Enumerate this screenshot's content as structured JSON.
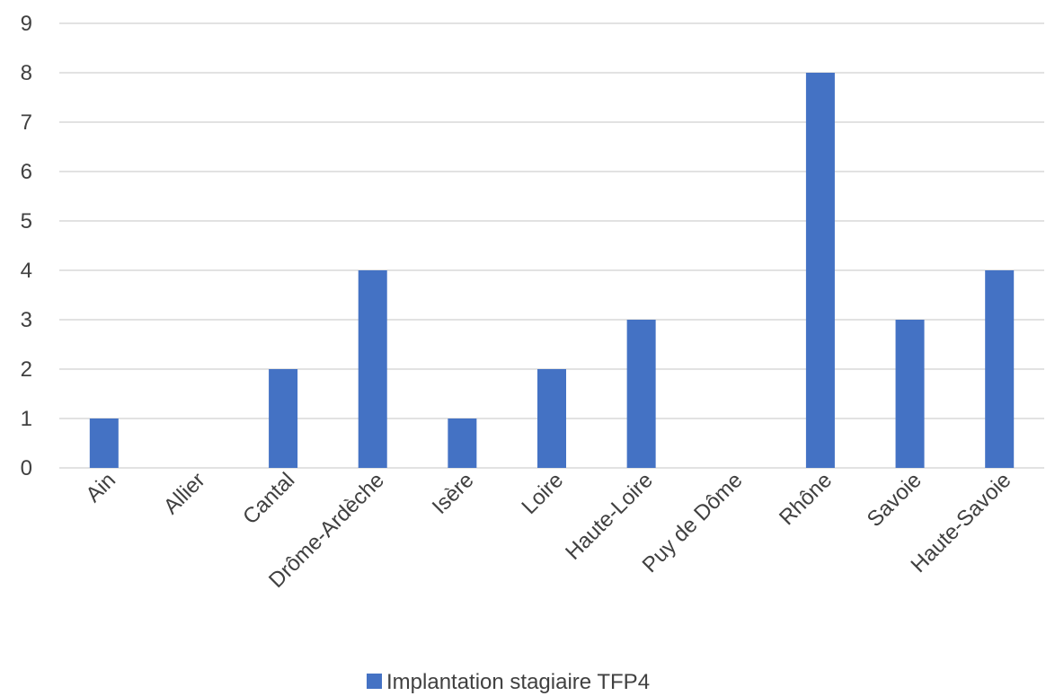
{
  "chart_data": {
    "type": "bar",
    "title": "",
    "xlabel": "",
    "ylabel": "",
    "categories": [
      "Ain",
      "Allier",
      "Cantal",
      "Drôme-Ardèche",
      "Isère",
      "Loire",
      "Haute-Loire",
      "Puy de Dôme",
      "Rhône",
      "Savoie",
      "Haute-Savoie"
    ],
    "series": [
      {
        "name": "Implantation stagiaire TFP4",
        "color": "#4472c4",
        "values": [
          1,
          0,
          2,
          4,
          1,
          2,
          3,
          0,
          8,
          3,
          4
        ]
      }
    ],
    "ylim": [
      0,
      9
    ],
    "yticks": [
      0,
      1,
      2,
      3,
      4,
      5,
      6,
      7,
      8,
      9
    ],
    "grid": true,
    "legend_position": "bottom"
  }
}
